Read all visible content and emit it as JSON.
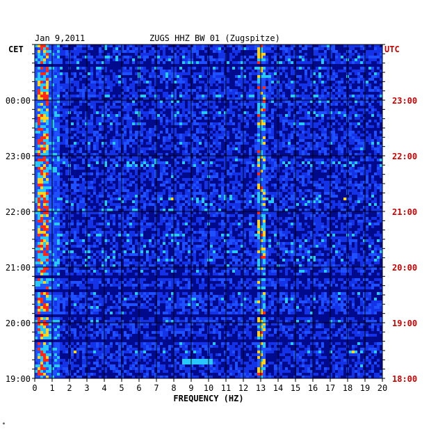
{
  "chart_data": {
    "type": "heatmap",
    "title": "ZUGS HHZ BW 01 (Zugspitze)",
    "date": "Jan 9,2011",
    "left_timezone": "CET",
    "right_timezone": "UTC",
    "xlabel": "FREQUENCY (HZ)",
    "xlim": [
      0,
      20
    ],
    "x_ticks": [
      "0",
      "1",
      "2",
      "3",
      "4",
      "5",
      "6",
      "7",
      "8",
      "9",
      "10",
      "11",
      "12",
      "13",
      "14",
      "15",
      "16",
      "17",
      "18",
      "19",
      "20"
    ],
    "left_time_ticks": [
      {
        "label": "00:00",
        "hour": 24
      },
      {
        "label": "23:00",
        "hour": 23
      },
      {
        "label": "22:00",
        "hour": 22
      },
      {
        "label": "21:00",
        "hour": 21
      },
      {
        "label": "20:00",
        "hour": 20
      },
      {
        "label": "19:00",
        "hour": 19
      }
    ],
    "right_time_ticks": [
      {
        "label": "23:00",
        "hour": 24
      },
      {
        "label": "22:00",
        "hour": 23
      },
      {
        "label": "21:00",
        "hour": 22
      },
      {
        "label": "20:00",
        "hour": 21
      },
      {
        "label": "19:00",
        "hour": 20
      },
      {
        "label": "18:00",
        "hour": 19
      }
    ],
    "time_range_cet": [
      19,
      25
    ],
    "colors": {
      "background": "#0a14d2",
      "low": "#000a8c",
      "mid": "#1e50ff",
      "high": "#28c8ff",
      "peak": "#ff2814",
      "utc_text": "#cc0000",
      "text": "#000000"
    },
    "features": [
      {
        "desc": "persistent low-frequency energy band",
        "freq_range_hz": [
          0.1,
          0.8
        ],
        "intensity": "high"
      },
      {
        "desc": "narrow spectral line",
        "freq_hz": 13.1,
        "intensity": "high"
      },
      {
        "desc": "short transient",
        "freq_range_hz": [
          8.5,
          10.2
        ],
        "hour_cet": 19.3,
        "intensity": "medium"
      }
    ],
    "grid": true
  },
  "footer_mark": "*"
}
